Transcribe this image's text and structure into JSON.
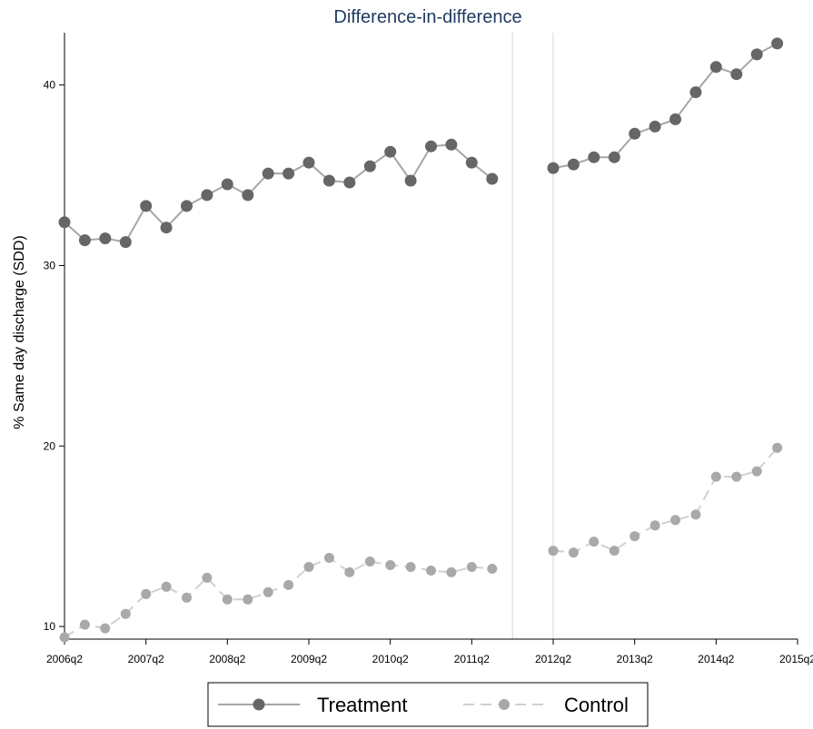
{
  "chart_data": {
    "type": "line",
    "title": "Difference-in-difference",
    "xlabel": "",
    "ylabel": "% Same day discharge (SDD)",
    "x_tick_labels": [
      "2006q2",
      "2007q2",
      "2008q2",
      "2009q2",
      "2010q2",
      "2011q2",
      "2012q2",
      "2013q2",
      "2014q2",
      "2015q2"
    ],
    "y_ticks": [
      10,
      20,
      30,
      40
    ],
    "ylim": [
      9.3,
      42.9
    ],
    "reference_lines": [
      "2011q4",
      "2012q2"
    ],
    "grid": false,
    "legend_position": "bottom",
    "x": [
      "2006q2",
      "2006q3",
      "2006q4",
      "2007q1",
      "2007q2",
      "2007q3",
      "2007q4",
      "2008q1",
      "2008q2",
      "2008q3",
      "2008q4",
      "2009q1",
      "2009q2",
      "2009q3",
      "2009q4",
      "2010q1",
      "2010q2",
      "2010q3",
      "2010q4",
      "2011q1",
      "2011q2",
      "2011q3",
      "2012q2",
      "2012q3",
      "2012q4",
      "2013q1",
      "2013q2",
      "2013q3",
      "2013q4",
      "2014q1",
      "2014q2",
      "2014q3",
      "2014q4",
      "2015q1"
    ],
    "series": [
      {
        "name": "Treatment",
        "color": "#666666",
        "line_color": "#a6a6a6",
        "dash": "solid",
        "values": [
          32.4,
          31.4,
          31.5,
          31.3,
          33.3,
          32.1,
          33.3,
          33.9,
          34.5,
          33.9,
          35.1,
          35.1,
          35.7,
          34.7,
          34.6,
          35.5,
          36.3,
          34.7,
          36.6,
          36.7,
          35.7,
          34.8,
          35.4,
          35.6,
          36.0,
          36.0,
          37.3,
          37.7,
          38.1,
          39.6,
          41.0,
          40.6,
          41.7,
          42.3
        ]
      },
      {
        "name": "Control",
        "color": "#a9a9a9",
        "line_color": "#d0d0d0",
        "dash": "dashed",
        "values": [
          9.4,
          10.1,
          9.9,
          10.7,
          11.8,
          12.2,
          11.6,
          12.7,
          11.5,
          11.5,
          11.9,
          12.3,
          13.3,
          13.8,
          13.0,
          13.6,
          13.4,
          13.3,
          13.1,
          13.0,
          13.3,
          13.2,
          14.2,
          14.1,
          14.7,
          14.2,
          15.0,
          15.6,
          15.9,
          16.2,
          18.3,
          18.3,
          18.6,
          19.9
        ]
      }
    ]
  }
}
